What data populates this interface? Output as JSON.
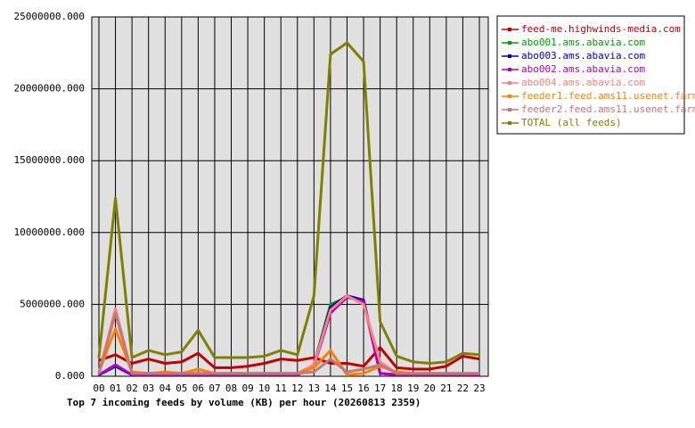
{
  "chart_data": {
    "type": "line",
    "title": "Top 7 incoming feeds by volume (KB) per hour (20260813 2359)",
    "categories": [
      "00",
      "01",
      "02",
      "03",
      "04",
      "05",
      "06",
      "07",
      "08",
      "09",
      "10",
      "11",
      "12",
      "13",
      "14",
      "15",
      "16",
      "17",
      "18",
      "19",
      "20",
      "21",
      "22",
      "23"
    ],
    "ylim": [
      0,
      25000000
    ],
    "yticks": [
      {
        "value": 0,
        "label": "0.000"
      },
      {
        "value": 5000000,
        "label": "5000000.000"
      },
      {
        "value": 10000000,
        "label": "10000000.000"
      },
      {
        "value": 15000000,
        "label": "15000000.000"
      },
      {
        "value": 20000000,
        "label": "20000000.000"
      },
      {
        "value": 25000000,
        "label": "25000000.000"
      }
    ],
    "grid": true,
    "series": [
      {
        "name": "feed-me.highwinds-media.com",
        "color": "#c00000",
        "values": [
          1100000,
          1500000,
          900000,
          1200000,
          900000,
          1000000,
          1600000,
          600000,
          600000,
          700000,
          900000,
          1200000,
          1100000,
          1300000,
          900000,
          900000,
          700000,
          2000000,
          600000,
          500000,
          500000,
          700000,
          1400000,
          1200000
        ]
      },
      {
        "name": "abo001.ams.abavia.com",
        "color": "#00a000",
        "values": [
          100000,
          700000,
          100000,
          100000,
          100000,
          100000,
          100000,
          100000,
          100000,
          100000,
          100000,
          100000,
          100000,
          800000,
          5000000,
          5500000,
          5300000,
          200000,
          100000,
          100000,
          100000,
          100000,
          100000,
          100000
        ]
      },
      {
        "name": "abo003.ams.abavia.com",
        "color": "#0000c0",
        "values": [
          100000,
          700000,
          100000,
          100000,
          100000,
          100000,
          100000,
          100000,
          100000,
          100000,
          100000,
          100000,
          100000,
          800000,
          4800000,
          5600000,
          5300000,
          200000,
          100000,
          100000,
          100000,
          100000,
          100000,
          100000
        ]
      },
      {
        "name": "abo002.ams.abavia.com",
        "color": "#b000c0",
        "values": [
          100000,
          800000,
          100000,
          100000,
          100000,
          100000,
          100000,
          100000,
          100000,
          100000,
          100000,
          100000,
          100000,
          700000,
          4400000,
          5500000,
          5200000,
          200000,
          100000,
          100000,
          100000,
          100000,
          100000,
          100000
        ]
      },
      {
        "name": "abo004.ams.abavia.com",
        "color": "#ff8080",
        "values": [
          200000,
          4700000,
          200000,
          200000,
          200000,
          200000,
          200000,
          200000,
          200000,
          200000,
          200000,
          200000,
          200000,
          800000,
          4600000,
          5600000,
          5000000,
          1000000,
          200000,
          200000,
          200000,
          200000,
          200000,
          200000
        ]
      },
      {
        "name": "feeder1.feed.ams11.usenet.farm",
        "color": "#ff8000",
        "values": [
          300000,
          3300000,
          300000,
          200000,
          300000,
          200000,
          500000,
          200000,
          200000,
          200000,
          200000,
          200000,
          200000,
          600000,
          1800000,
          100000,
          200000,
          700000,
          300000,
          200000,
          200000,
          200000,
          200000,
          200000
        ]
      },
      {
        "name": "feeder2.feed.ams11.usenet.farm",
        "color": "#c07878",
        "values": [
          200000,
          4400000,
          200000,
          200000,
          200000,
          200000,
          200000,
          200000,
          200000,
          200000,
          200000,
          200000,
          200000,
          300000,
          1200000,
          300000,
          500000,
          800000,
          200000,
          200000,
          200000,
          200000,
          200000,
          200000
        ]
      },
      {
        "name": "TOTAL (all feeds)",
        "color": "#808000",
        "values": [
          1300000,
          12400000,
          1300000,
          1800000,
          1500000,
          1700000,
          3200000,
          1300000,
          1300000,
          1300000,
          1400000,
          1800000,
          1500000,
          5600000,
          22400000,
          23200000,
          21900000,
          3800000,
          1400000,
          1000000,
          900000,
          1000000,
          1600000,
          1500000
        ]
      }
    ]
  }
}
